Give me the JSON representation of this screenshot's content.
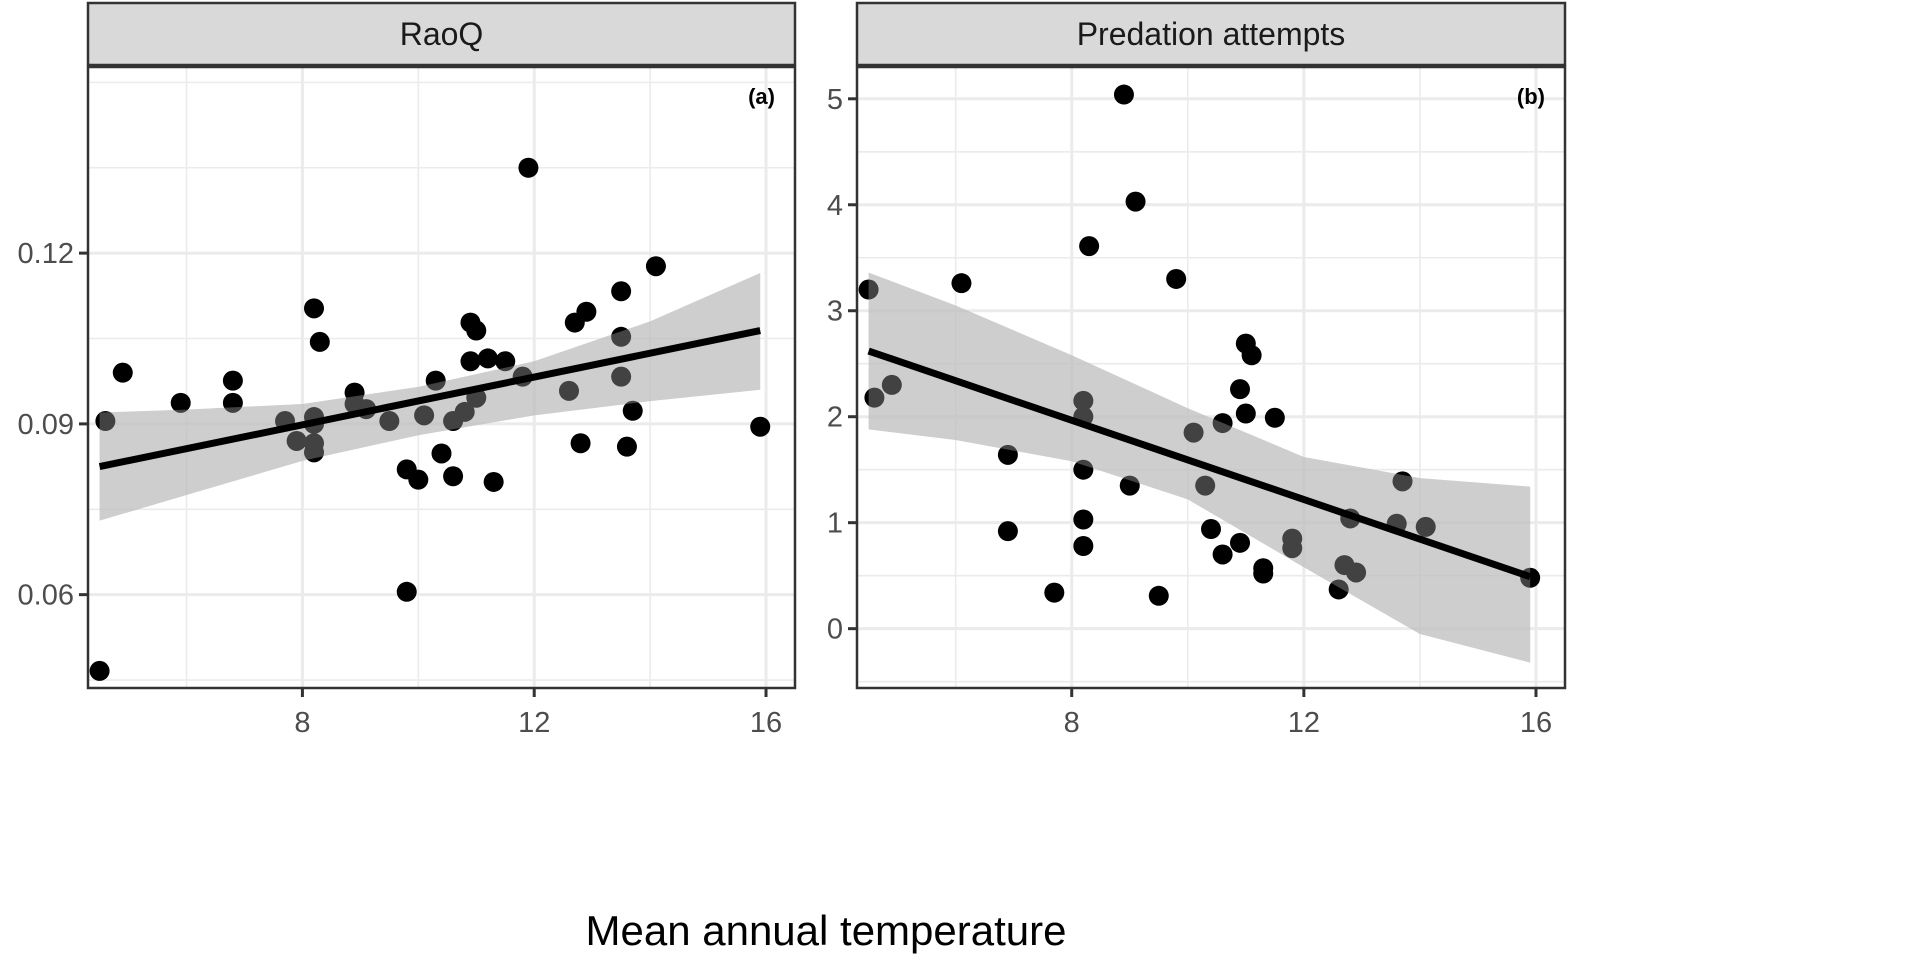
{
  "figure": {
    "xlabel": "Mean annual temperature",
    "point_color": "#000000",
    "ribbon_color": "#bdbdbd",
    "strip_color": "#d9d9d9",
    "grid_color": "#ebebeb"
  },
  "chart_data": [
    {
      "type": "scatter",
      "title": "RaoQ",
      "panel_tag": "(a)",
      "xlabel": "Mean annual temperature",
      "ylabel": "",
      "xlim": [
        4.3,
        16.5
      ],
      "ylim": [
        0.0436,
        0.1527
      ],
      "xticks": [
        8,
        12,
        16
      ],
      "xtick_labels": [
        "8",
        "12",
        "16"
      ],
      "yticks": [
        0.06,
        0.09,
        0.12
      ],
      "ytick_labels": [
        "0.06",
        "0.09",
        "0.12"
      ],
      "grid": true,
      "points": [
        {
          "x": 4.5,
          "y": 0.0466
        },
        {
          "x": 4.6,
          "y": 0.0905
        },
        {
          "x": 4.9,
          "y": 0.099
        },
        {
          "x": 5.9,
          "y": 0.0937
        },
        {
          "x": 6.8,
          "y": 0.0976
        },
        {
          "x": 6.8,
          "y": 0.0937
        },
        {
          "x": 7.7,
          "y": 0.0905
        },
        {
          "x": 7.9,
          "y": 0.087
        },
        {
          "x": 8.2,
          "y": 0.1103
        },
        {
          "x": 8.2,
          "y": 0.0912
        },
        {
          "x": 8.2,
          "y": 0.09
        },
        {
          "x": 8.2,
          "y": 0.0866
        },
        {
          "x": 8.2,
          "y": 0.085
        },
        {
          "x": 8.3,
          "y": 0.1044
        },
        {
          "x": 8.9,
          "y": 0.0955
        },
        {
          "x": 8.9,
          "y": 0.0935
        },
        {
          "x": 9.1,
          "y": 0.0926
        },
        {
          "x": 9.5,
          "y": 0.0905
        },
        {
          "x": 9.8,
          "y": 0.082
        },
        {
          "x": 9.8,
          "y": 0.0605
        },
        {
          "x": 10.0,
          "y": 0.0802
        },
        {
          "x": 10.1,
          "y": 0.0915
        },
        {
          "x": 10.3,
          "y": 0.0976
        },
        {
          "x": 10.4,
          "y": 0.0848
        },
        {
          "x": 10.6,
          "y": 0.0905
        },
        {
          "x": 10.6,
          "y": 0.0808
        },
        {
          "x": 10.8,
          "y": 0.0921
        },
        {
          "x": 10.9,
          "y": 0.101
        },
        {
          "x": 10.9,
          "y": 0.1078
        },
        {
          "x": 11.0,
          "y": 0.1064
        },
        {
          "x": 11.0,
          "y": 0.0946
        },
        {
          "x": 11.2,
          "y": 0.1015
        },
        {
          "x": 11.3,
          "y": 0.0798
        },
        {
          "x": 11.5,
          "y": 0.101
        },
        {
          "x": 11.8,
          "y": 0.0983
        },
        {
          "x": 11.9,
          "y": 0.135
        },
        {
          "x": 12.6,
          "y": 0.0958
        },
        {
          "x": 12.7,
          "y": 0.1078
        },
        {
          "x": 12.8,
          "y": 0.0866
        },
        {
          "x": 12.9,
          "y": 0.1097
        },
        {
          "x": 13.5,
          "y": 0.1133
        },
        {
          "x": 13.5,
          "y": 0.1053
        },
        {
          "x": 13.5,
          "y": 0.0983
        },
        {
          "x": 13.6,
          "y": 0.086
        },
        {
          "x": 13.7,
          "y": 0.0923
        },
        {
          "x": 14.1,
          "y": 0.1177
        },
        {
          "x": 15.9,
          "y": 0.0895
        }
      ],
      "fit_line": {
        "x": [
          4.5,
          15.9
        ],
        "y": [
          0.0825,
          0.1064
        ]
      },
      "confidence_band": {
        "x": [
          4.5,
          6.0,
          8.0,
          10.0,
          12.0,
          14.0,
          15.9
        ],
        "lower": [
          0.073,
          0.0775,
          0.0835,
          0.088,
          0.0915,
          0.094,
          0.096
        ],
        "upper": [
          0.092,
          0.0925,
          0.0935,
          0.0965,
          0.101,
          0.108,
          0.1165
        ]
      }
    },
    {
      "type": "scatter",
      "title": "Predation attempts",
      "panel_tag": "(b)",
      "xlabel": "Mean annual temperature",
      "ylabel": "",
      "xlim": [
        4.3,
        16.5
      ],
      "ylim": [
        -0.56,
        5.3
      ],
      "xticks": [
        8,
        12,
        16
      ],
      "xtick_labels": [
        "8",
        "12",
        "16"
      ],
      "yticks": [
        0,
        1,
        2,
        3,
        4,
        5
      ],
      "ytick_labels": [
        "0",
        "1",
        "2",
        "3",
        "4",
        "5"
      ],
      "grid": true,
      "points": [
        {
          "x": 4.5,
          "y": 3.2
        },
        {
          "x": 4.6,
          "y": 2.18
        },
        {
          "x": 4.9,
          "y": 2.3
        },
        {
          "x": 6.1,
          "y": 3.26
        },
        {
          "x": 6.9,
          "y": 1.64
        },
        {
          "x": 6.9,
          "y": 0.92
        },
        {
          "x": 7.7,
          "y": 0.34
        },
        {
          "x": 8.2,
          "y": 2.15
        },
        {
          "x": 8.2,
          "y": 2.0
        },
        {
          "x": 8.2,
          "y": 1.5
        },
        {
          "x": 8.2,
          "y": 1.03
        },
        {
          "x": 8.2,
          "y": 0.78
        },
        {
          "x": 8.3,
          "y": 3.61
        },
        {
          "x": 8.9,
          "y": 5.04
        },
        {
          "x": 9.0,
          "y": 1.35
        },
        {
          "x": 9.1,
          "y": 4.03
        },
        {
          "x": 9.5,
          "y": 0.31
        },
        {
          "x": 9.8,
          "y": 3.3
        },
        {
          "x": 10.1,
          "y": 1.85
        },
        {
          "x": 10.3,
          "y": 1.35
        },
        {
          "x": 10.4,
          "y": 0.94
        },
        {
          "x": 10.6,
          "y": 1.94
        },
        {
          "x": 10.6,
          "y": 0.7
        },
        {
          "x": 10.9,
          "y": 2.26
        },
        {
          "x": 10.9,
          "y": 0.81
        },
        {
          "x": 11.0,
          "y": 2.69
        },
        {
          "x": 11.0,
          "y": 2.03
        },
        {
          "x": 11.1,
          "y": 2.58
        },
        {
          "x": 11.3,
          "y": 0.57
        },
        {
          "x": 11.3,
          "y": 0.52
        },
        {
          "x": 11.5,
          "y": 1.99
        },
        {
          "x": 11.8,
          "y": 0.85
        },
        {
          "x": 11.8,
          "y": 0.76
        },
        {
          "x": 12.6,
          "y": 0.37
        },
        {
          "x": 12.7,
          "y": 0.6
        },
        {
          "x": 12.8,
          "y": 1.04
        },
        {
          "x": 12.9,
          "y": 0.53
        },
        {
          "x": 13.6,
          "y": 0.99
        },
        {
          "x": 13.7,
          "y": 1.39
        },
        {
          "x": 14.1,
          "y": 0.96
        },
        {
          "x": 15.9,
          "y": 0.48
        }
      ],
      "fit_line": {
        "x": [
          4.5,
          15.9
        ],
        "y": [
          2.62,
          0.49
        ]
      },
      "confidence_band": {
        "x": [
          4.5,
          6.0,
          8.0,
          10.0,
          12.0,
          14.0,
          15.9
        ],
        "lower": [
          1.88,
          1.78,
          1.58,
          1.22,
          0.58,
          -0.05,
          -0.32
        ],
        "upper": [
          3.36,
          3.05,
          2.58,
          2.08,
          1.62,
          1.42,
          1.34
        ]
      }
    }
  ]
}
